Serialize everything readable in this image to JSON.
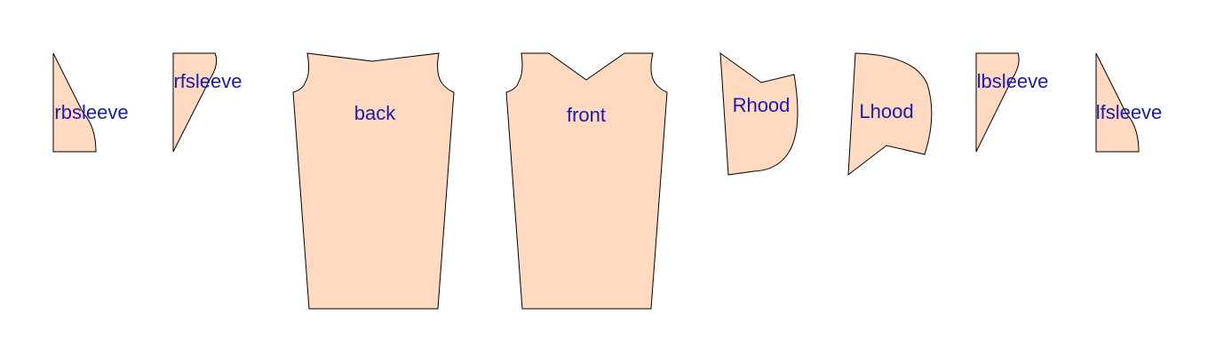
{
  "colors": {
    "piece_fill": "#ffdac0",
    "piece_stroke": "#000000",
    "label_color": "#1b1bb0",
    "background": "#ffffff"
  },
  "pieces": {
    "rbsleeve": {
      "label": "rbsleeve"
    },
    "rfsleeve": {
      "label": "rfsleeve"
    },
    "back": {
      "label": "back"
    },
    "front": {
      "label": "front"
    },
    "rhood": {
      "label": "Rhood"
    },
    "lhood": {
      "label": "Lhood"
    },
    "lbsleeve": {
      "label": "lbsleeve"
    },
    "lfsleeve": {
      "label": "lfsleeve"
    }
  }
}
